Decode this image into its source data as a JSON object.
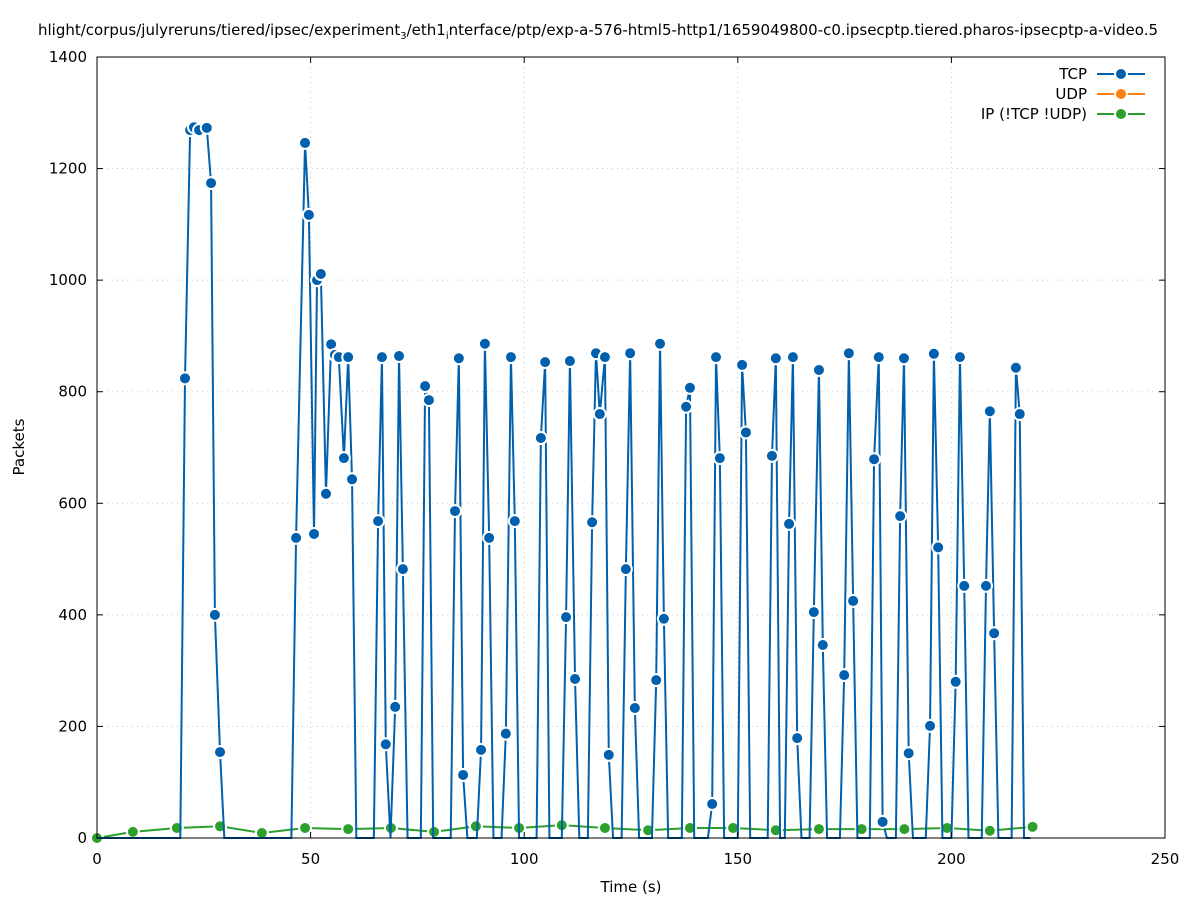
{
  "chart_data": {
    "type": "line",
    "title": "hlight/corpus/julyreruns/tiered/ipsec/experiment",
    "title_sub1": "3",
    "title_mid": "/eth1",
    "title_sub2": "i",
    "title_rest": "nterface/ptp/exp-a-576-html5-http1/1659049800-c0.ipsecptp.tiered.pharos-ipsecptp-a-video.5",
    "xlabel": "Time (s)",
    "ylabel": "Packets",
    "xlim": [
      0,
      250
    ],
    "ylim": [
      0,
      1400
    ],
    "xticks": [
      0,
      50,
      100,
      150,
      200,
      250
    ],
    "yticks": [
      0,
      200,
      400,
      600,
      800,
      1000,
      1200,
      1400
    ],
    "grid": true,
    "legend_position": "top-right",
    "series": [
      {
        "name": "TCP",
        "color": "#0060ad",
        "points": [
          [
            0,
            0
          ],
          [
            19.5,
            0
          ],
          [
            20.6,
            824
          ],
          [
            21.8,
            1269
          ],
          [
            22.7,
            1274
          ],
          [
            23.9,
            1269
          ],
          [
            25.7,
            1273
          ],
          [
            26.7,
            1174
          ],
          [
            27.6,
            400
          ],
          [
            28.8,
            154
          ],
          [
            29.8,
            0
          ],
          [
            45.5,
            0
          ],
          [
            46.6,
            538
          ],
          [
            48.7,
            1246
          ],
          [
            49.6,
            1117
          ],
          [
            50.8,
            545
          ],
          [
            51.5,
            1000
          ],
          [
            52.4,
            1011
          ],
          [
            53.6,
            617
          ],
          [
            54.8,
            885
          ],
          [
            55.7,
            866
          ],
          [
            56.6,
            862
          ],
          [
            57.8,
            681
          ],
          [
            58.8,
            862
          ],
          [
            59.7,
            643
          ],
          [
            60.7,
            0
          ],
          [
            64.8,
            0
          ],
          [
            65.8,
            568
          ],
          [
            66.7,
            862
          ],
          [
            67.6,
            168
          ],
          [
            68.7,
            0
          ],
          [
            69.8,
            235
          ],
          [
            70.7,
            864
          ],
          [
            71.6,
            482
          ],
          [
            72.7,
            0
          ],
          [
            75.8,
            0
          ],
          [
            76.8,
            810
          ],
          [
            77.7,
            785
          ],
          [
            78.7,
            0
          ],
          [
            82.8,
            0
          ],
          [
            83.8,
            586
          ],
          [
            84.7,
            860
          ],
          [
            85.7,
            113
          ],
          [
            86.7,
            0
          ],
          [
            88.9,
            0
          ],
          [
            89.9,
            158
          ],
          [
            90.8,
            886
          ],
          [
            91.8,
            538
          ],
          [
            92.8,
            0
          ],
          [
            94.7,
            0
          ],
          [
            95.7,
            187
          ],
          [
            96.9,
            862
          ],
          [
            97.8,
            568
          ],
          [
            98.8,
            0
          ],
          [
            102.9,
            0
          ],
          [
            103.9,
            717
          ],
          [
            104.9,
            853
          ],
          [
            105.9,
            0
          ],
          [
            108.8,
            0
          ],
          [
            109.8,
            396
          ],
          [
            110.7,
            855
          ],
          [
            111.9,
            285
          ],
          [
            112.9,
            0
          ],
          [
            114.9,
            0
          ],
          [
            115.9,
            566
          ],
          [
            116.8,
            869
          ],
          [
            117.7,
            760
          ],
          [
            118.9,
            862
          ],
          [
            119.8,
            149
          ],
          [
            120.8,
            0
          ],
          [
            122.8,
            0
          ],
          [
            123.8,
            482
          ],
          [
            124.8,
            869
          ],
          [
            125.9,
            233
          ],
          [
            126.9,
            0
          ],
          [
            129.9,
            0
          ],
          [
            130.9,
            283
          ],
          [
            131.8,
            886
          ],
          [
            132.7,
            393
          ],
          [
            133.7,
            0
          ],
          [
            136.9,
            0
          ],
          [
            137.9,
            773
          ],
          [
            138.8,
            807
          ],
          [
            139.8,
            0
          ],
          [
            143,
            0
          ],
          [
            144,
            61
          ],
          [
            144.9,
            862
          ],
          [
            145.8,
            681
          ],
          [
            146.8,
            0
          ],
          [
            150,
            0
          ],
          [
            151,
            848
          ],
          [
            151.9,
            727
          ],
          [
            152.9,
            0
          ],
          [
            157,
            0
          ],
          [
            158,
            685
          ],
          [
            158.9,
            860
          ],
          [
            159.9,
            0
          ],
          [
            161,
            0
          ],
          [
            162,
            563
          ],
          [
            162.9,
            862
          ],
          [
            163.9,
            179
          ],
          [
            164.9,
            0
          ],
          [
            166.8,
            0
          ],
          [
            167.8,
            405
          ],
          [
            169,
            839
          ],
          [
            169.9,
            346
          ],
          [
            170.9,
            0
          ],
          [
            173.9,
            0
          ],
          [
            174.9,
            292
          ],
          [
            176,
            869
          ],
          [
            177,
            425
          ],
          [
            178,
            0
          ],
          [
            180.9,
            0
          ],
          [
            181.9,
            679
          ],
          [
            183,
            862
          ],
          [
            183.9,
            29
          ],
          [
            184.9,
            0
          ],
          [
            187,
            0
          ],
          [
            188,
            577
          ],
          [
            188.9,
            860
          ],
          [
            190,
            152
          ],
          [
            191,
            0
          ],
          [
            194,
            0
          ],
          [
            195,
            201
          ],
          [
            195.9,
            868
          ],
          [
            196.9,
            521
          ],
          [
            197.9,
            0
          ],
          [
            200,
            0
          ],
          [
            201,
            280
          ],
          [
            202,
            862
          ],
          [
            203,
            452
          ],
          [
            204,
            0
          ],
          [
            207.1,
            0
          ],
          [
            208.1,
            452
          ],
          [
            209,
            765
          ],
          [
            210,
            367
          ],
          [
            211,
            0
          ],
          [
            214.1,
            0
          ],
          [
            215.1,
            843
          ],
          [
            216,
            760
          ],
          [
            217,
            0
          ],
          [
            218.5,
            0
          ]
        ]
      },
      {
        "name": "UDP",
        "color": "#ff7f0e",
        "points": []
      },
      {
        "name": "IP (!TCP  !UDP)",
        "color": "#2ca02c",
        "points": [
          [
            0,
            0
          ],
          [
            8.4,
            11
          ],
          [
            18.7,
            18
          ],
          [
            28.8,
            21
          ],
          [
            38.6,
            9
          ],
          [
            48.7,
            18
          ],
          [
            58.8,
            16
          ],
          [
            68.8,
            18
          ],
          [
            78.9,
            11
          ],
          [
            88.7,
            21
          ],
          [
            98.8,
            18
          ],
          [
            108.8,
            23
          ],
          [
            118.9,
            18
          ],
          [
            129,
            14
          ],
          [
            138.8,
            18
          ],
          [
            148.9,
            18
          ],
          [
            158.9,
            14
          ],
          [
            169,
            16
          ],
          [
            179,
            16
          ],
          [
            189,
            16
          ],
          [
            199,
            18
          ],
          [
            209,
            13
          ],
          [
            219,
            20
          ]
        ]
      }
    ]
  }
}
